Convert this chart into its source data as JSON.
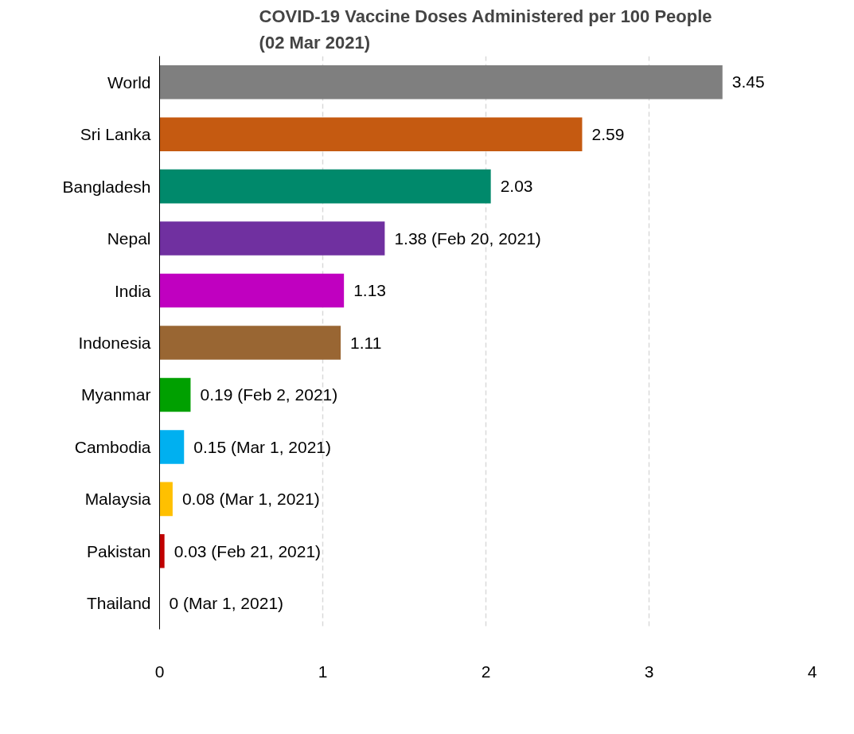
{
  "chart_data": {
    "type": "bar",
    "orientation": "horizontal",
    "title": "COVID-19 Vaccine Doses Administered per 100 People\n(02 Mar 2021)",
    "categories": [
      "World",
      "Sri Lanka",
      "Bangladesh",
      "Nepal",
      "India",
      "Indonesia",
      "Myanmar",
      "Cambodia",
      "Malaysia",
      "Pakistan",
      "Thailand"
    ],
    "values": [
      3.45,
      2.59,
      2.03,
      1.38,
      1.13,
      1.11,
      0.19,
      0.15,
      0.08,
      0.03,
      0
    ],
    "colors": [
      "#7f7f7f",
      "#c55a11",
      "#00896b",
      "#7030a0",
      "#c000c0",
      "#996633",
      "#00a000",
      "#00b0f0",
      "#ffc000",
      "#c00000",
      "#ff0000"
    ],
    "value_labels": [
      "3.45",
      "2.59",
      "2.03",
      "1.38 (Feb 20, 2021)",
      "1.13",
      "1.11",
      "0.19 (Feb 2, 2021)",
      "0.15 (Mar 1, 2021)",
      "0.08 (Mar 1, 2021)",
      "0.03 (Feb 21, 2021)",
      "0 (Mar 1, 2021)"
    ],
    "xlim": [
      0,
      4
    ],
    "xticks": [
      0,
      1,
      2,
      3,
      4
    ],
    "grid": "x"
  }
}
